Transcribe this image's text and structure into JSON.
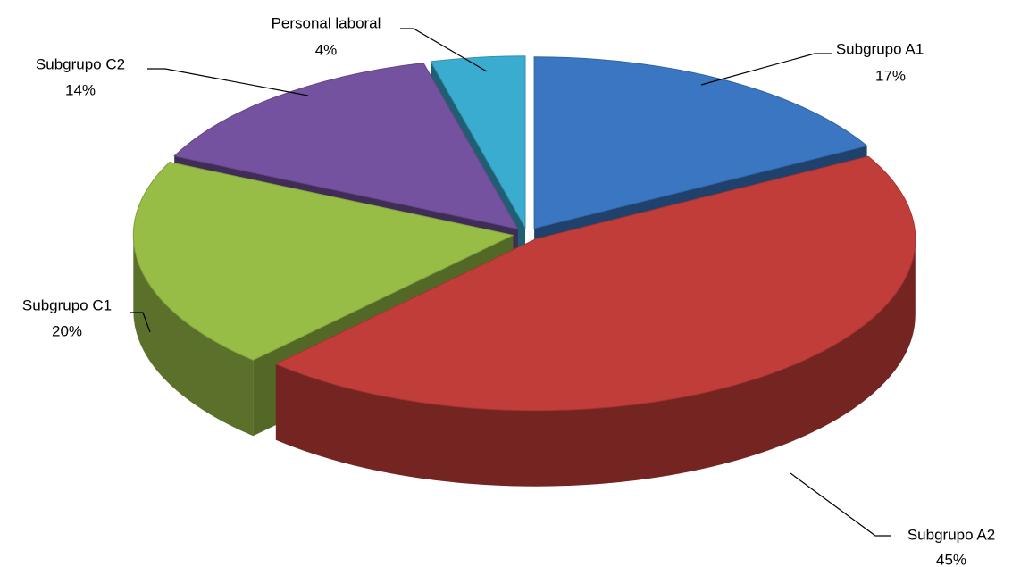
{
  "chart_data": {
    "type": "pie",
    "categories": [
      "Subgrupo A1",
      "Subgrupo A2",
      "Subgrupo C1",
      "Subgrupo C2",
      "Personal laboral"
    ],
    "values": [
      17,
      45,
      20,
      14,
      4
    ],
    "value_labels": [
      "17%",
      "45%",
      "20%",
      "14%",
      "4%"
    ],
    "colors": [
      "#3b76c2",
      "#c13d39",
      "#97bd47",
      "#74529f",
      "#3aacd0"
    ]
  }
}
